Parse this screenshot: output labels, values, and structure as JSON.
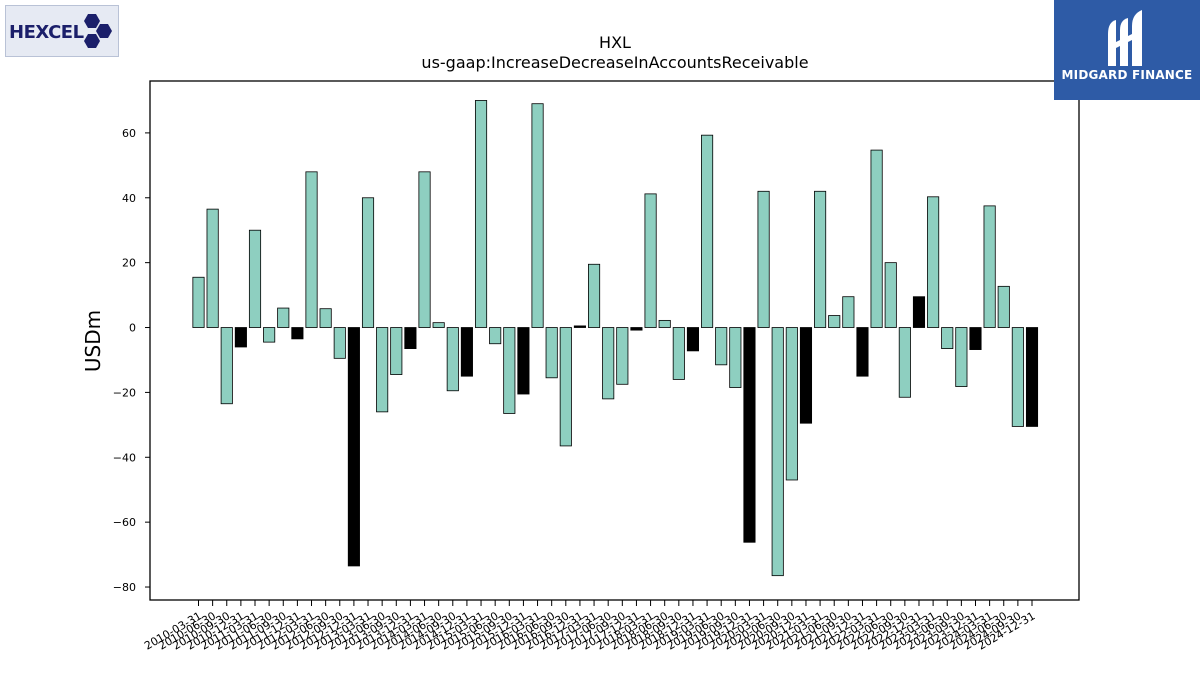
{
  "logos": {
    "left_text": "HEXCEL",
    "right_text": "MIDGARD FINANCE"
  },
  "chart_data": {
    "type": "bar",
    "title": "HXL",
    "subtitle": "us-gaap:IncreaseDecreaseInAccountsReceivable",
    "xlabel": "",
    "ylabel": "USDm",
    "ylim": [
      -84,
      76
    ],
    "yticks": [
      -80,
      -60,
      -40,
      -20,
      0,
      20,
      40,
      60
    ],
    "colors": {
      "highlight": "#000000",
      "default": "#8ecfc0"
    },
    "categories": [
      "2010-03-31",
      "2010-06-30",
      "2010-09-30",
      "2010-12-31",
      "2011-03-31",
      "2011-06-30",
      "2011-09-30",
      "2011-12-31",
      "2012-03-31",
      "2012-06-30",
      "2012-09-30",
      "2012-12-31",
      "2013-03-31",
      "2013-06-30",
      "2013-09-30",
      "2013-12-31",
      "2014-03-31",
      "2014-06-30",
      "2014-09-30",
      "2014-12-31",
      "2015-03-31",
      "2015-06-30",
      "2015-09-30",
      "2015-12-31",
      "2016-03-31",
      "2016-06-30",
      "2016-09-30",
      "2016-12-31",
      "2017-03-31",
      "2017-06-30",
      "2017-09-30",
      "2017-12-31",
      "2018-03-31",
      "2018-06-30",
      "2018-09-30",
      "2018-12-31",
      "2019-03-31",
      "2019-06-30",
      "2019-09-30",
      "2019-12-31",
      "2020-03-31",
      "2020-06-30",
      "2020-09-30",
      "2020-12-31",
      "2021-03-31",
      "2021-06-30",
      "2021-09-30",
      "2021-12-31",
      "2022-03-31",
      "2022-06-30",
      "2022-09-30",
      "2022-12-31",
      "2023-03-31",
      "2023-06-30",
      "2023-09-30",
      "2023-12-31",
      "2024-03-31",
      "2024-06-30",
      "2024-09-30",
      "2024-12-31"
    ],
    "values": [
      15.5,
      36.5,
      -23.5,
      -6,
      30,
      -4.5,
      6,
      -3.5,
      48,
      5.8,
      -9.5,
      -73.5,
      40,
      -26,
      -14.5,
      -6.5,
      48,
      1.5,
      -19.5,
      -15,
      70,
      -5,
      -26.5,
      -20.5,
      69,
      -15.5,
      -36.5,
      0.5,
      19.5,
      -22,
      -17.5,
      -0.8,
      41.2,
      2.2,
      -16,
      -7.2,
      59.3,
      -11.5,
      -18.5,
      -66.2,
      42,
      -76.5,
      -47,
      -29.5,
      42,
      3.7,
      9.5,
      -15,
      54.7,
      20,
      -21.5,
      9.5,
      40.3,
      -6.5,
      -18.2,
      -6.8,
      37.5,
      12.7,
      -30.5,
      -30.5
    ],
    "highlighted": [
      false,
      false,
      false,
      true,
      false,
      false,
      false,
      true,
      false,
      false,
      false,
      true,
      false,
      false,
      false,
      true,
      false,
      false,
      false,
      true,
      false,
      false,
      false,
      true,
      false,
      false,
      false,
      true,
      false,
      false,
      false,
      true,
      false,
      false,
      false,
      true,
      false,
      false,
      false,
      true,
      false,
      false,
      false,
      true,
      false,
      false,
      false,
      true,
      false,
      false,
      false,
      true,
      false,
      false,
      false,
      true,
      false,
      false,
      false,
      true
    ]
  }
}
